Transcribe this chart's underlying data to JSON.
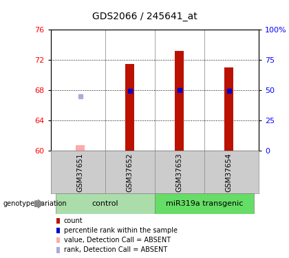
{
  "title": "GDS2066 / 245641_at",
  "samples": [
    "GSM37651",
    "GSM37652",
    "GSM37653",
    "GSM37654"
  ],
  "groups": [
    {
      "label": "control",
      "samples": [
        "GSM37651",
        "GSM37652"
      ],
      "color": "#aaddaa"
    },
    {
      "label": "miR319a transgenic",
      "samples": [
        "GSM37653",
        "GSM37654"
      ],
      "color": "#66dd66"
    }
  ],
  "ylim_left": [
    60,
    76
  ],
  "ylim_right": [
    0,
    100
  ],
  "yticks_left": [
    60,
    64,
    68,
    72,
    76
  ],
  "yticks_right": [
    0,
    25,
    50,
    75,
    100
  ],
  "ytick_labels_right": [
    "0",
    "25",
    "50",
    "75",
    "100%"
  ],
  "count_bars": {
    "GSM37651": {
      "value": 60.8,
      "absent": true
    },
    "GSM37652": {
      "value": 71.5,
      "absent": false
    },
    "GSM37653": {
      "value": 73.2,
      "absent": false
    },
    "GSM37654": {
      "value": 71.0,
      "absent": false
    }
  },
  "rank_marks": {
    "GSM37651": {
      "value": 67.2,
      "absent": true
    },
    "GSM37652": {
      "value": 67.9,
      "absent": false
    },
    "GSM37653": {
      "value": 68.0,
      "absent": false
    },
    "GSM37654": {
      "value": 67.9,
      "absent": false
    }
  },
  "bar_width": 0.18,
  "bar_color_present": "#bb1100",
  "bar_color_absent": "#ffaaaa",
  "rank_color_present": "#0000cc",
  "rank_color_absent": "#aaaadd",
  "rank_marker_size": 5,
  "ybase": 60,
  "legend_items": [
    {
      "label": "count",
      "color": "#bb1100"
    },
    {
      "label": "percentile rank within the sample",
      "color": "#0000cc"
    },
    {
      "label": "value, Detection Call = ABSENT",
      "color": "#ffaaaa"
    },
    {
      "label": "rank, Detection Call = ABSENT",
      "color": "#aaaadd"
    }
  ],
  "genotype_label": "genotype/variation",
  "axis_bg": "#cccccc",
  "plot_bg": "#ffffff"
}
